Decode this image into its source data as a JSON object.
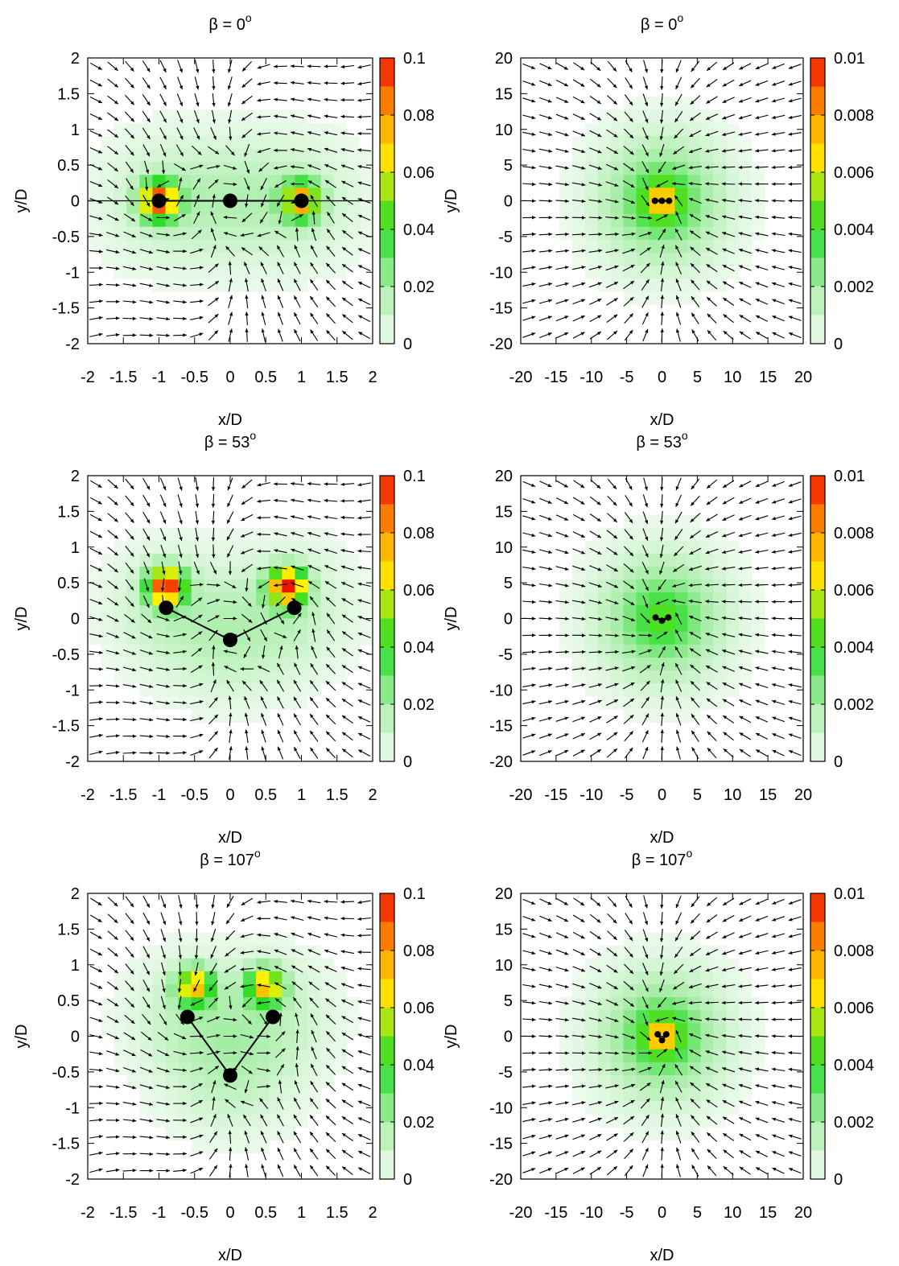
{
  "figure": {
    "panels": [
      {
        "title_prefix": "β = 0",
        "title_sup": "o",
        "xlabel": "x/D",
        "ylabel": "y/D"
      },
      {
        "title_prefix": "β = 0",
        "title_sup": "o",
        "xlabel": "x/D",
        "ylabel": "y/D"
      },
      {
        "title_prefix": "β = 53",
        "title_sup": "o",
        "xlabel": "x/D",
        "ylabel": "y/D"
      },
      {
        "title_prefix": "β = 53",
        "title_sup": "o",
        "xlabel": "x/D",
        "ylabel": "y/D"
      },
      {
        "title_prefix": "β = 107",
        "title_sup": "o",
        "xlabel": "x/D",
        "ylabel": "y/D"
      },
      {
        "title_prefix": "β = 107",
        "title_sup": "o",
        "xlabel": "x/D",
        "ylabel": "y/D"
      }
    ]
  },
  "chart_data": [
    {
      "type": "heatmap",
      "title": "β = 0°",
      "xlabel": "x/D",
      "ylabel": "y/D",
      "xlim": [
        -2,
        2
      ],
      "ylim": [
        -2,
        2
      ],
      "xticks": [
        "-2",
        "-1.5",
        "-1",
        "-0.5",
        "0",
        "0.5",
        "1",
        "1.5",
        "2"
      ],
      "yticks": [
        "2",
        "1.5",
        "1",
        "0.5",
        "0",
        "-0.5",
        "-1",
        "-1.5",
        "-2"
      ],
      "colorbar": {
        "range": [
          0,
          0.1
        ],
        "ticks": [
          "0.1",
          "0.08",
          "0.06",
          "0.04",
          "0.02",
          "0"
        ]
      },
      "particles": [
        [
          -1,
          0
        ],
        [
          0,
          0
        ],
        [
          1,
          0
        ]
      ],
      "hotspots": [
        {
          "x": -1.0,
          "y": 0,
          "value": 0.085
        },
        {
          "x": 1.0,
          "y": 0,
          "value": 0.07
        }
      ],
      "vector_field": "quiver"
    },
    {
      "type": "heatmap",
      "title": "β = 0°",
      "xlabel": "x/D",
      "ylabel": "y/D",
      "xlim": [
        -20,
        20
      ],
      "ylim": [
        -20,
        20
      ],
      "xticks": [
        "-20",
        "-15",
        "-10",
        "-5",
        "0",
        "5",
        "10",
        "15",
        "20"
      ],
      "yticks": [
        "20",
        "15",
        "10",
        "5",
        "0",
        "-5",
        "-10",
        "-15",
        "-20"
      ],
      "colorbar": {
        "range": [
          0,
          0.01
        ],
        "ticks": [
          "0.01",
          "0.008",
          "0.006",
          "0.004",
          "0.002",
          "0"
        ]
      },
      "particles": [
        [
          -1,
          0
        ],
        [
          0,
          0
        ],
        [
          1,
          0
        ]
      ],
      "hotspots": [
        {
          "x": 0,
          "y": 0,
          "value": 0.0045
        }
      ],
      "vector_field": "quiver"
    },
    {
      "type": "heatmap",
      "title": "β = 53°",
      "xlabel": "x/D",
      "ylabel": "y/D",
      "xlim": [
        -2,
        2
      ],
      "ylim": [
        -2,
        2
      ],
      "xticks": [
        "-2",
        "-1.5",
        "-1",
        "-0.5",
        "0",
        "0.5",
        "1",
        "1.5",
        "2"
      ],
      "yticks": [
        "2",
        "1.5",
        "1",
        "0.5",
        "0",
        "-0.5",
        "-1",
        "-1.5",
        "-2"
      ],
      "colorbar": {
        "range": [
          0,
          0.1
        ],
        "ticks": [
          "0.1",
          "0.08",
          "0.06",
          "0.04",
          "0.02",
          "0"
        ]
      },
      "particles": [
        [
          -0.9,
          0.15
        ],
        [
          0,
          -0.3
        ],
        [
          0.9,
          0.15
        ]
      ],
      "hotspots": [
        {
          "x": -0.9,
          "y": 0.45,
          "value": 0.09
        },
        {
          "x": 0.8,
          "y": 0.45,
          "value": 0.09
        }
      ],
      "vector_field": "quiver"
    },
    {
      "type": "heatmap",
      "title": "β = 53°",
      "xlabel": "x/D",
      "ylabel": "y/D",
      "xlim": [
        -20,
        20
      ],
      "ylim": [
        -20,
        20
      ],
      "xticks": [
        "-20",
        "-15",
        "-10",
        "-5",
        "0",
        "5",
        "10",
        "15",
        "20"
      ],
      "yticks": [
        "20",
        "15",
        "10",
        "5",
        "0",
        "-5",
        "-10",
        "-15",
        "-20"
      ],
      "colorbar": {
        "range": [
          0,
          0.01
        ],
        "ticks": [
          "0.01",
          "0.008",
          "0.006",
          "0.004",
          "0.002",
          "0"
        ]
      },
      "particles": [
        [
          -0.9,
          0.15
        ],
        [
          0,
          -0.3
        ],
        [
          0.9,
          0.15
        ]
      ],
      "hotspots": [
        {
          "x": 0,
          "y": 0,
          "value": 0.0012
        }
      ],
      "vector_field": "quiver"
    },
    {
      "type": "heatmap",
      "title": "β = 107°",
      "xlabel": "x/D",
      "ylabel": "y/D",
      "xlim": [
        -2,
        2
      ],
      "ylim": [
        -2,
        2
      ],
      "xticks": [
        "-2",
        "-1.5",
        "-1",
        "-0.5",
        "0",
        "0.5",
        "1",
        "1.5",
        "2"
      ],
      "yticks": [
        "2",
        "1.5",
        "1",
        "0.5",
        "0",
        "-0.5",
        "-1",
        "-1.5",
        "-2"
      ],
      "colorbar": {
        "range": [
          0,
          0.1
        ],
        "ticks": [
          "0.1",
          "0.08",
          "0.06",
          "0.04",
          "0.02",
          "0"
        ]
      },
      "particles": [
        [
          -0.6,
          0.27
        ],
        [
          0,
          -0.55
        ],
        [
          0.6,
          0.27
        ]
      ],
      "hotspots": [
        {
          "x": -0.5,
          "y": 0.7,
          "value": 0.065
        },
        {
          "x": 0.5,
          "y": 0.7,
          "value": 0.065
        }
      ],
      "vector_field": "quiver"
    },
    {
      "type": "heatmap",
      "title": "β = 107°",
      "xlabel": "x/D",
      "ylabel": "y/D",
      "xlim": [
        -20,
        20
      ],
      "ylim": [
        -20,
        20
      ],
      "xticks": [
        "-20",
        "-15",
        "-10",
        "-5",
        "0",
        "5",
        "10",
        "15",
        "20"
      ],
      "yticks": [
        "20",
        "15",
        "10",
        "5",
        "0",
        "-5",
        "-10",
        "-15",
        "-20"
      ],
      "colorbar": {
        "range": [
          0,
          0.01
        ],
        "ticks": [
          "0.01",
          "0.008",
          "0.006",
          "0.004",
          "0.002",
          "0"
        ]
      },
      "particles": [
        [
          -0.6,
          0.27
        ],
        [
          0,
          -0.55
        ],
        [
          0.6,
          0.27
        ]
      ],
      "hotspots": [
        {
          "x": 0,
          "y": 0,
          "value": 0.0045
        }
      ],
      "vector_field": "quiver"
    }
  ]
}
